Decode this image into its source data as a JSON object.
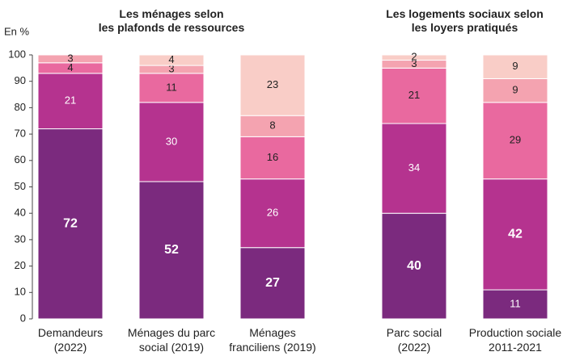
{
  "chart_data": [
    {
      "type": "bar",
      "stacked": true,
      "title": "Les ménages selon\nles plafonds de ressources",
      "ylabel": "En %",
      "categories": [
        "Demandeurs\n(2022)",
        "Ménages du parc\nsocial (2019)",
        "Ménages\nfranciliens (2019)"
      ],
      "series": [
        {
          "color": "#7b2a7e",
          "values": [
            72,
            52,
            27
          ]
        },
        {
          "color": "#b5338f",
          "values": [
            21,
            30,
            26
          ]
        },
        {
          "color": "#e9699f",
          "values": [
            4,
            11,
            16
          ]
        },
        {
          "color": "#f4a3b0",
          "values": [
            3,
            3,
            8
          ]
        },
        {
          "color": "#f9cdc7",
          "values": [
            null,
            4,
            23
          ]
        }
      ],
      "ylim": [
        0,
        100
      ],
      "yticks": [
        0,
        10,
        20,
        30,
        40,
        50,
        60,
        70,
        80,
        90,
        100
      ]
    },
    {
      "type": "bar",
      "stacked": true,
      "title": "Les logements sociaux selon\nles loyers pratiqués",
      "categories": [
        "Parc social\n(2022)",
        "Production sociale\n2011-2021"
      ],
      "series": [
        {
          "color": "#7b2a7e",
          "values": [
            40,
            11
          ]
        },
        {
          "color": "#b5338f",
          "values": [
            34,
            42
          ]
        },
        {
          "color": "#e9699f",
          "values": [
            21,
            29
          ]
        },
        {
          "color": "#f4a3b0",
          "values": [
            3,
            9
          ]
        },
        {
          "color": "#f9cdc7",
          "values": [
            2,
            9
          ]
        }
      ],
      "ylim": [
        0,
        100
      ]
    }
  ]
}
